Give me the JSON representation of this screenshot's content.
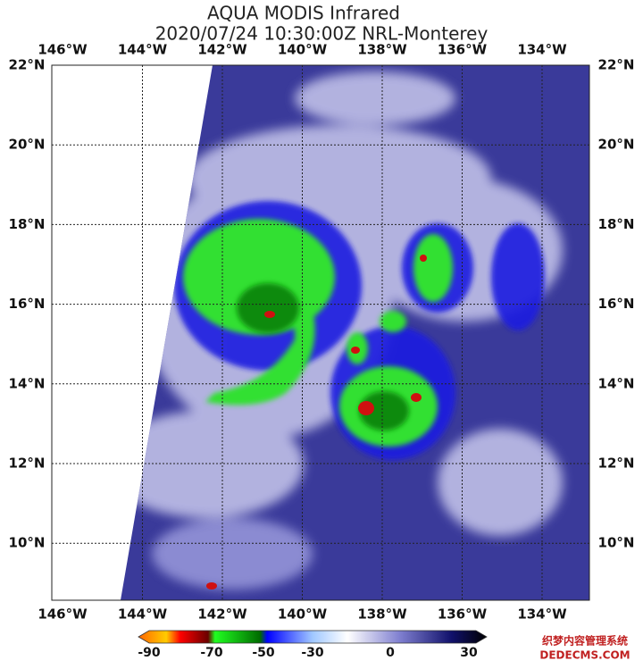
{
  "header": {
    "title": "AQUA MODIS Infrared",
    "subtitle": "2020/07/24 10:30:00Z NRL-Monterey"
  },
  "map": {
    "lon_labels": [
      "146°W",
      "144°W",
      "142°W",
      "140°W",
      "138°W",
      "136°W",
      "134°W"
    ],
    "lat_labels": [
      "22°N",
      "20°N",
      "18°N",
      "16°N",
      "14°N",
      "12°N",
      "10°N"
    ]
  },
  "colorbar": {
    "ticks": [
      "-90",
      "-70",
      "-50",
      "-30",
      "0",
      "30"
    ]
  },
  "watermark": {
    "line1": "织梦内容管理系统",
    "line2": "DEDECMS.COM"
  }
}
